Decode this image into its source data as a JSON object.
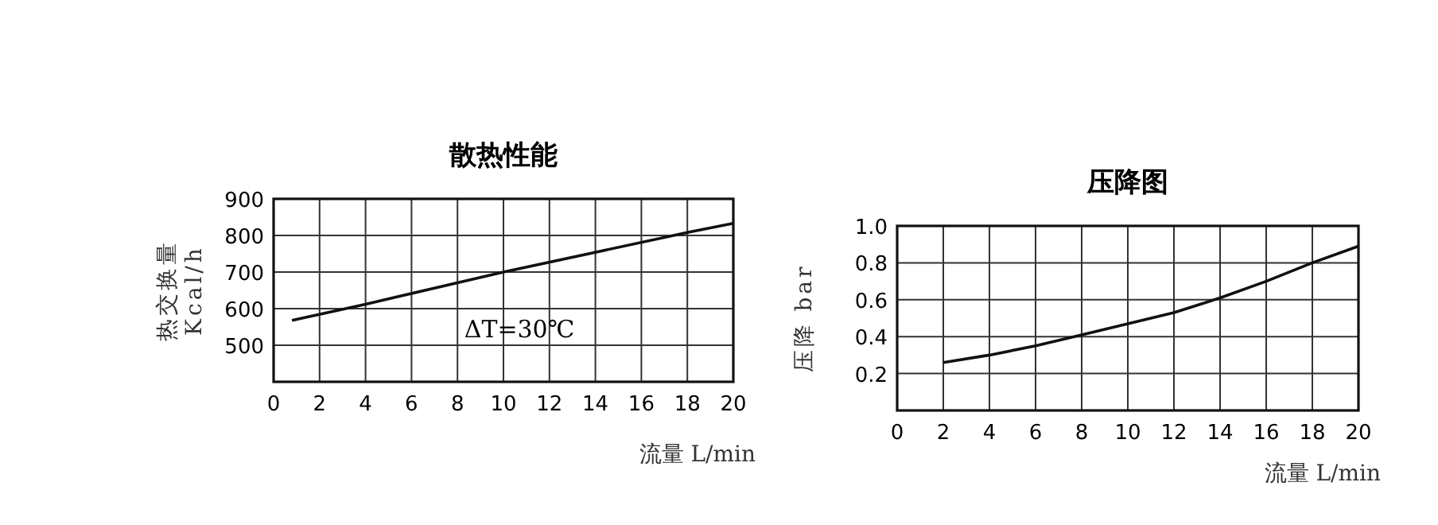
{
  "chart_data": [
    {
      "type": "line",
      "title": "散热性能",
      "xlabel": "流量 L/min",
      "ylabel": "热交换量\nKcal/h",
      "annotations": [
        "ΔT=30℃"
      ],
      "grid": true,
      "color": "#111111",
      "x": [
        0.8,
        4,
        10,
        18,
        20
      ],
      "values": [
        568,
        612,
        700,
        808,
        833
      ],
      "xlim": [
        0,
        20
      ],
      "xticks": [
        0,
        2,
        4,
        6,
        8,
        10,
        12,
        14,
        16,
        18,
        20
      ],
      "ylim": [
        400,
        900
      ],
      "yticks": [
        500,
        600,
        700,
        800,
        900
      ]
    },
    {
      "type": "line",
      "title": "压降图",
      "xlabel": "流量 L/min",
      "ylabel": "压降 bar",
      "grid": true,
      "color": "#111111",
      "x": [
        2,
        4,
        6,
        8,
        10,
        12,
        14,
        16,
        18,
        20
      ],
      "values": [
        0.26,
        0.3,
        0.35,
        0.41,
        0.47,
        0.53,
        0.61,
        0.7,
        0.8,
        0.89
      ],
      "xlim": [
        0,
        20
      ],
      "xticks": [
        0,
        2,
        4,
        6,
        8,
        10,
        12,
        14,
        16,
        18,
        20
      ],
      "ylim": [
        0,
        1
      ],
      "yticks": [
        0.2,
        0.4,
        0.6,
        0.8,
        {
          "value": 1,
          "label": "1.0"
        }
      ]
    }
  ]
}
